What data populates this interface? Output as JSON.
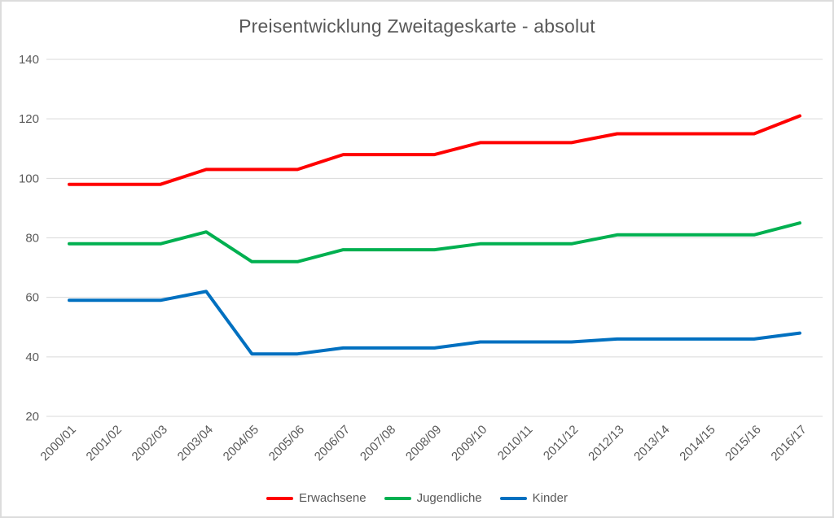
{
  "title": "Preisentwicklung Zweitageskarte - absolut",
  "colors": {
    "background": "#FFFFFF",
    "canvas_border": "#DCDCDC",
    "gridline": "#D9D9D9",
    "axis_text": "#595959",
    "title_text": "#595959",
    "series_red": "#FF0000",
    "series_green": "#00B050",
    "series_blue": "#0070C0"
  },
  "chart_data": {
    "type": "line",
    "title": "Preisentwicklung Zweitageskarte - absolut",
    "xlabel": "",
    "ylabel": "",
    "grid": true,
    "legend_position": "bottom",
    "ylim": [
      20,
      140
    ],
    "yticks": [
      20,
      40,
      60,
      80,
      100,
      120,
      140
    ],
    "categories": [
      "2000/01",
      "2001/02",
      "2002/03",
      "2003/04",
      "2004/05",
      "2005/06",
      "2006/07",
      "2007/08",
      "2008/09",
      "2009/10",
      "2010/11",
      "2011/12",
      "2012/13",
      "2013/14",
      "2014/15",
      "2015/16",
      "2016/17"
    ],
    "series": [
      {
        "name": "Erwachsene",
        "color": "#FF0000",
        "values": [
          98,
          98,
          98,
          103,
          103,
          103,
          108,
          108,
          108,
          112,
          112,
          112,
          115,
          115,
          115,
          115,
          121
        ]
      },
      {
        "name": "Jugendliche",
        "color": "#00B050",
        "values": [
          78,
          78,
          78,
          82,
          72,
          72,
          76,
          76,
          76,
          78,
          78,
          78,
          81,
          81,
          81,
          81,
          85
        ]
      },
      {
        "name": "Kinder",
        "color": "#0070C0",
        "values": [
          59,
          59,
          59,
          62,
          41,
          41,
          43,
          43,
          43,
          45,
          45,
          45,
          46,
          46,
          46,
          46,
          48
        ]
      }
    ]
  }
}
